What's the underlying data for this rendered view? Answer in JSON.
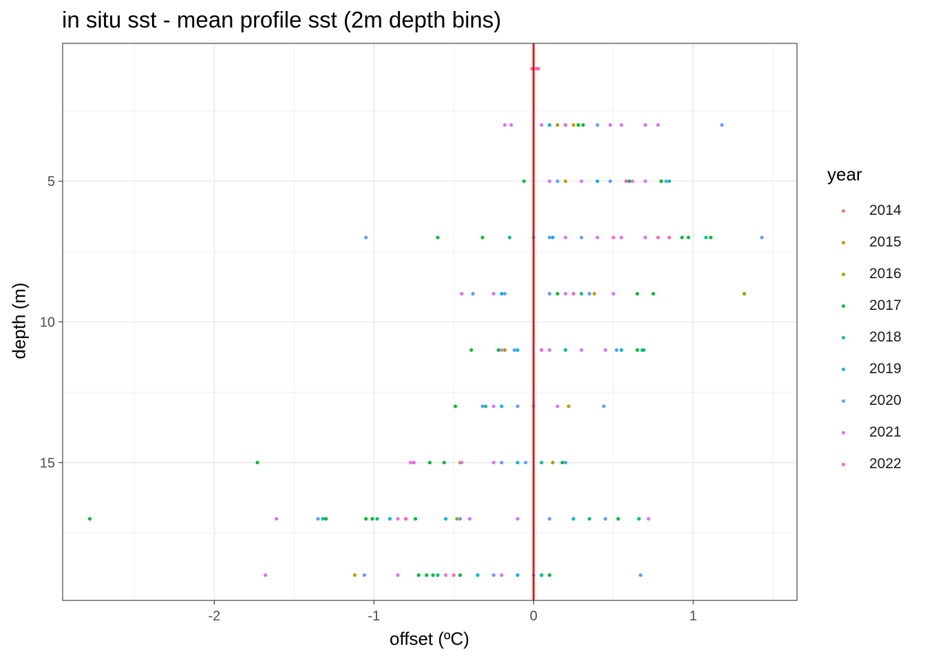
{
  "chart_data": {
    "type": "scatter",
    "title": "in situ sst - mean profile sst (2m depth bins)",
    "xlabel": "offset (ºC)",
    "ylabel": "depth (m)",
    "xlim": [
      -2.95,
      1.65
    ],
    "ylim": [
      19.9,
      0.1
    ],
    "y_reversed": true,
    "x_ticks": [
      -2,
      -1,
      0,
      1
    ],
    "x_tick_labels": [
      "-2",
      "-1",
      "0",
      "1"
    ],
    "y_ticks": [
      5,
      10,
      15
    ],
    "y_tick_labels": [
      "5",
      "10",
      "15"
    ],
    "grid": true,
    "reference_line": {
      "x": 0,
      "color": "#e31a1c"
    },
    "legend": {
      "title": "year",
      "placement": "right"
    },
    "series": [
      {
        "name": "2014",
        "color": "#F8766D",
        "points": [
          [
            0.02,
            1
          ],
          [
            -0.01,
            1
          ]
        ]
      },
      {
        "name": "2015",
        "color": "#C49A00",
        "points": [
          [
            0.58,
            5
          ],
          [
            0.2,
            5
          ],
          [
            1.32,
            9
          ],
          [
            0.38,
            9
          ],
          [
            -0.46,
            15
          ],
          [
            -1.12,
            19
          ],
          [
            0.22,
            13
          ],
          [
            0.1,
            11
          ],
          [
            0.25,
            3
          ]
        ]
      },
      {
        "name": "2016",
        "color": "#99A800",
        "points": [
          [
            1.32,
            9
          ],
          [
            0.8,
            5
          ],
          [
            0.55,
            7
          ],
          [
            -0.18,
            11
          ],
          [
            0.12,
            15
          ],
          [
            -0.48,
            17
          ],
          [
            0.05,
            19
          ],
          [
            0.15,
            3
          ]
        ]
      },
      {
        "name": "2017",
        "color": "#00BA38",
        "points": [
          [
            0.31,
            3
          ],
          [
            0.28,
            3
          ],
          [
            -0.06,
            5
          ],
          [
            0.8,
            5
          ],
          [
            0.6,
            5
          ],
          [
            -0.6,
            7
          ],
          [
            -0.32,
            7
          ],
          [
            0.97,
            7
          ],
          [
            0.93,
            7
          ],
          [
            1.11,
            7
          ],
          [
            0.75,
            9
          ],
          [
            0.65,
            9
          ],
          [
            0.15,
            9
          ],
          [
            -0.39,
            11
          ],
          [
            -0.22,
            11
          ],
          [
            0.69,
            11
          ],
          [
            0.65,
            11
          ],
          [
            -0.49,
            13
          ],
          [
            -1.73,
            15
          ],
          [
            -0.65,
            15
          ],
          [
            -0.56,
            15
          ],
          [
            0.18,
            15
          ],
          [
            -2.78,
            17
          ],
          [
            -1.3,
            17
          ],
          [
            -1.05,
            17
          ],
          [
            -1.01,
            17
          ],
          [
            -0.8,
            17
          ],
          [
            -0.74,
            17
          ],
          [
            0.53,
            17
          ],
          [
            -0.72,
            19
          ],
          [
            -0.67,
            19
          ],
          [
            -0.63,
            19
          ],
          [
            0.1,
            19
          ],
          [
            -0.46,
            19
          ]
        ]
      },
      {
        "name": "2018",
        "color": "#00C08B",
        "points": [
          [
            0.85,
            5
          ],
          [
            0.7,
            7
          ],
          [
            -0.15,
            7
          ],
          [
            1.08,
            7
          ],
          [
            0.3,
            9
          ],
          [
            0.68,
            11
          ],
          [
            0.2,
            11
          ],
          [
            -0.3,
            13
          ],
          [
            0.05,
            15
          ],
          [
            -1.32,
            17
          ],
          [
            -0.98,
            17
          ],
          [
            0.66,
            17
          ],
          [
            0.35,
            17
          ],
          [
            -0.6,
            19
          ],
          [
            0.05,
            19
          ]
        ]
      },
      {
        "name": "2019",
        "color": "#00B4F0",
        "points": [
          [
            0.1,
            3
          ],
          [
            0.4,
            5
          ],
          [
            0.0,
            7
          ],
          [
            0.12,
            7
          ],
          [
            -0.2,
            9
          ],
          [
            -0.1,
            11
          ],
          [
            0.55,
            11
          ],
          [
            -0.2,
            13
          ],
          [
            -0.1,
            15
          ],
          [
            -0.9,
            17
          ],
          [
            -0.55,
            17
          ],
          [
            0.25,
            17
          ],
          [
            -0.35,
            19
          ],
          [
            -0.1,
            19
          ]
        ]
      },
      {
        "name": "2020",
        "color": "#619CFF",
        "points": [
          [
            1.18,
            3
          ],
          [
            0.4,
            3
          ],
          [
            0.83,
            5
          ],
          [
            0.48,
            5
          ],
          [
            0.15,
            5
          ],
          [
            -1.05,
            7
          ],
          [
            1.43,
            7
          ],
          [
            0.3,
            7
          ],
          [
            0.1,
            7
          ],
          [
            -0.38,
            9
          ],
          [
            -0.18,
            9
          ],
          [
            0.35,
            9
          ],
          [
            0.1,
            9
          ],
          [
            -0.12,
            11
          ],
          [
            0.52,
            11
          ],
          [
            0.44,
            13
          ],
          [
            -0.32,
            13
          ],
          [
            -0.1,
            13
          ],
          [
            0.2,
            15
          ],
          [
            -0.2,
            15
          ],
          [
            -0.05,
            15
          ],
          [
            -1.35,
            17
          ],
          [
            -0.46,
            17
          ],
          [
            0.45,
            17
          ],
          [
            0.1,
            17
          ],
          [
            -1.06,
            19
          ],
          [
            0.67,
            19
          ],
          [
            -0.25,
            19
          ],
          [
            0.0,
            19
          ]
        ]
      },
      {
        "name": "2021",
        "color": "#DB72FB",
        "points": [
          [
            -0.18,
            3
          ],
          [
            -0.14,
            3
          ],
          [
            0.48,
            3
          ],
          [
            0.55,
            3
          ],
          [
            0.7,
            3
          ],
          [
            0.78,
            3
          ],
          [
            0.2,
            3
          ],
          [
            0.05,
            3
          ],
          [
            0.62,
            5
          ],
          [
            0.7,
            5
          ],
          [
            0.3,
            5
          ],
          [
            0.1,
            5
          ],
          [
            0.55,
            7
          ],
          [
            0.7,
            7
          ],
          [
            0.4,
            7
          ],
          [
            0.2,
            7
          ],
          [
            -0.45,
            9
          ],
          [
            -0.25,
            9
          ],
          [
            0.5,
            9
          ],
          [
            0.2,
            9
          ],
          [
            -0.2,
            11
          ],
          [
            0.45,
            11
          ],
          [
            0.3,
            11
          ],
          [
            0.1,
            11
          ],
          [
            -0.25,
            13
          ],
          [
            0.15,
            13
          ],
          [
            0.0,
            13
          ],
          [
            -0.77,
            15
          ],
          [
            -0.45,
            15
          ],
          [
            -0.25,
            15
          ],
          [
            -1.61,
            17
          ],
          [
            0.72,
            17
          ],
          [
            -0.85,
            17
          ],
          [
            -0.4,
            17
          ],
          [
            -0.1,
            17
          ],
          [
            -1.68,
            19
          ],
          [
            -0.85,
            19
          ],
          [
            -0.55,
            19
          ],
          [
            -0.2,
            19
          ]
        ]
      },
      {
        "name": "2022",
        "color": "#FF61C3",
        "points": [
          [
            0.0,
            1
          ],
          [
            0.03,
            1
          ],
          [
            0.2,
            3
          ],
          [
            0.58,
            5
          ],
          [
            0.78,
            7
          ],
          [
            0.85,
            7
          ],
          [
            0.5,
            7
          ],
          [
            0.25,
            9
          ],
          [
            0.05,
            11
          ],
          [
            -0.75,
            15
          ],
          [
            -0.8,
            17
          ],
          [
            -0.5,
            19
          ]
        ]
      }
    ]
  }
}
